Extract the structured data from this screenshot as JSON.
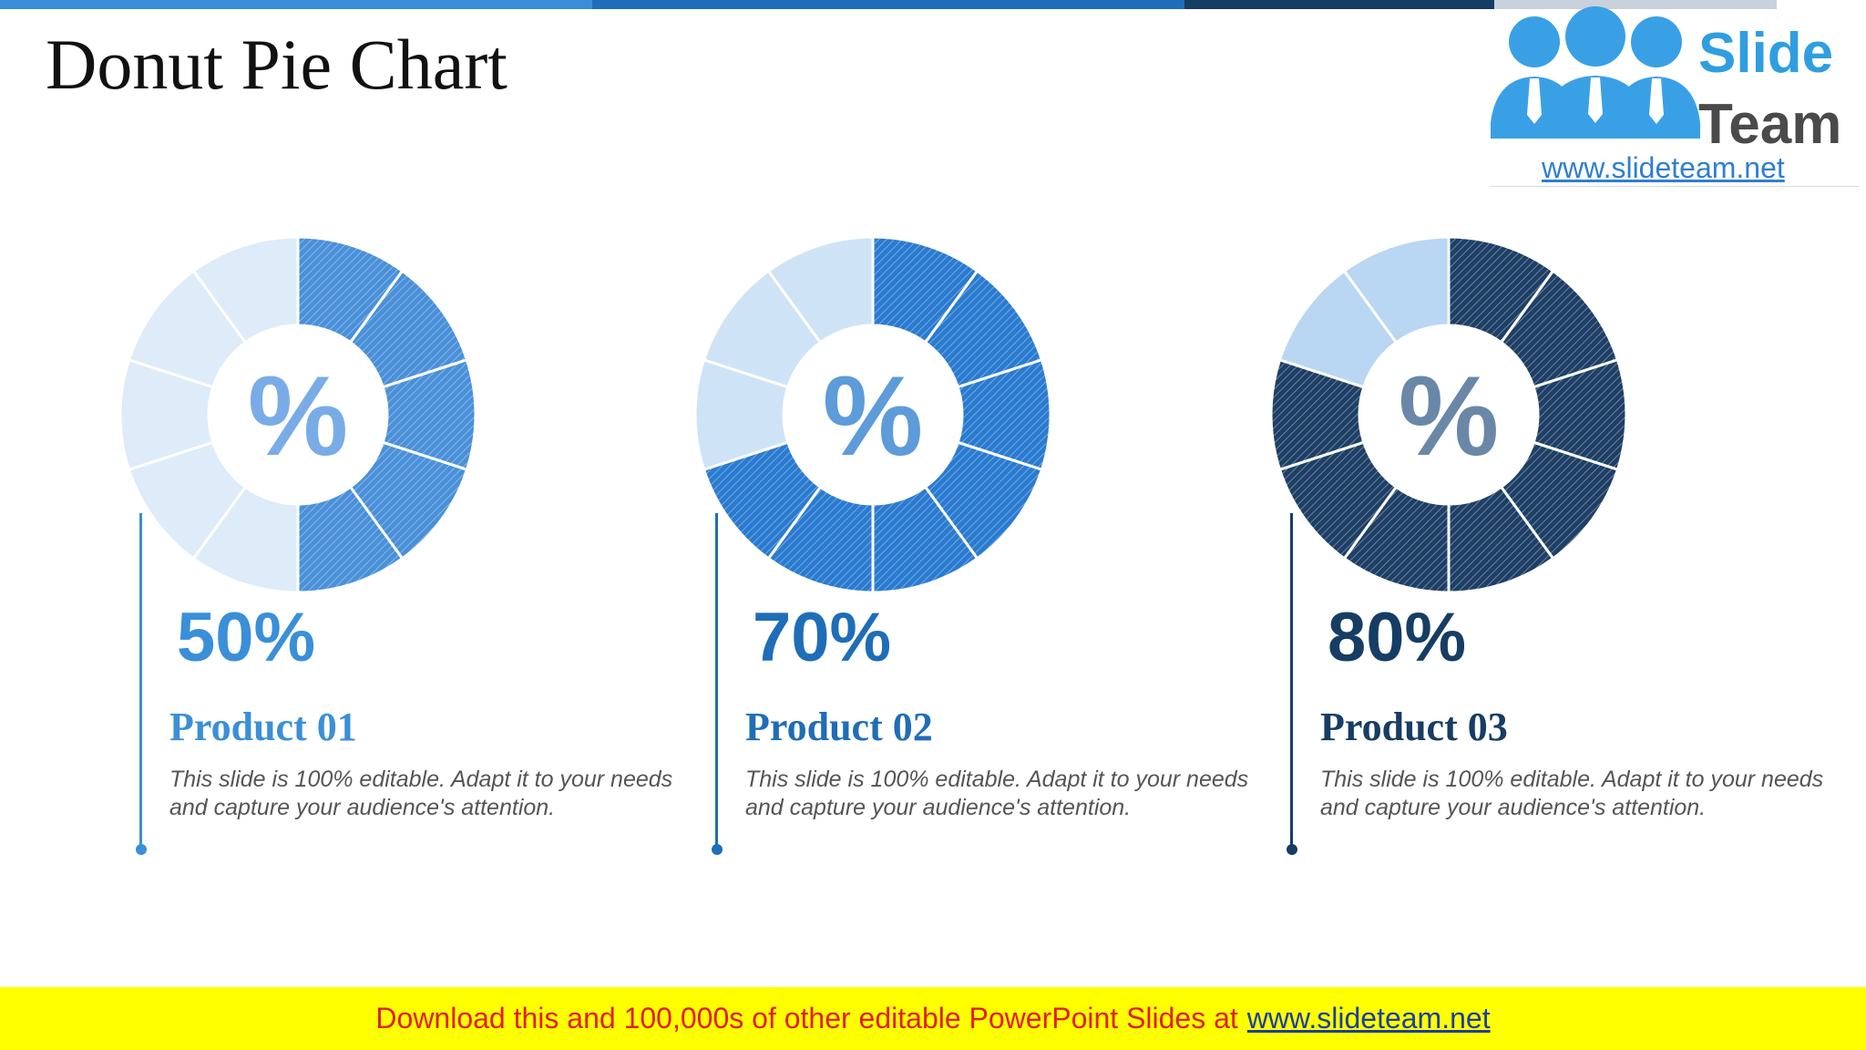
{
  "slide": {
    "title": "Donut Pie Chart",
    "top_bar_colors": [
      "#3a8fd8",
      "#1f6db8",
      "#163d63",
      "#c9d1dc"
    ]
  },
  "logo": {
    "word1": "Slide",
    "word2": "Team",
    "url": "www.slideteam.net",
    "colors": {
      "figures": "#3aa0e6",
      "word1": "#2f9ee0",
      "word2": "#4a4a4a",
      "url": "#2f7fd0"
    }
  },
  "chart_data": [
    {
      "type": "pie",
      "center_symbol": "%",
      "segments_total": 10,
      "value_percent": 50,
      "value_label": "50%",
      "name": "Product 01",
      "description": "This slide is 100% editable. Adapt it to your needs and capture your audience's attention.",
      "colors": {
        "filled": "#4a90d9",
        "empty": "#deebf8",
        "center_symbol": "#79ace6",
        "label": "#3a8fd8"
      }
    },
    {
      "type": "pie",
      "center_symbol": "%",
      "segments_total": 10,
      "value_percent": 70,
      "value_label": "70%",
      "name": "Product 02",
      "description": "This slide is 100% editable. Adapt it to your needs and capture your audience's attention.",
      "colors": {
        "filled": "#2a7bd0",
        "empty": "#cfe3f7",
        "center_symbol": "#5d9bd9",
        "label": "#1f6db8"
      }
    },
    {
      "type": "pie",
      "center_symbol": "%",
      "segments_total": 10,
      "value_percent": 80,
      "value_label": "80%",
      "name": "Product 03",
      "description": "This slide is 100% editable. Adapt it to your needs and capture your audience's attention.",
      "colors": {
        "filled": "#1e3f66",
        "empty": "#b9d6f2",
        "center_symbol": "#6a87a8",
        "label": "#163d63"
      }
    }
  ],
  "footer": {
    "text": "Download this and 100,000s of other editable PowerPoint Slides at",
    "link": "www.slideteam.net",
    "colors": {
      "background": "#ffff00",
      "text": "#e02020",
      "link": "#1a3fa0"
    }
  }
}
